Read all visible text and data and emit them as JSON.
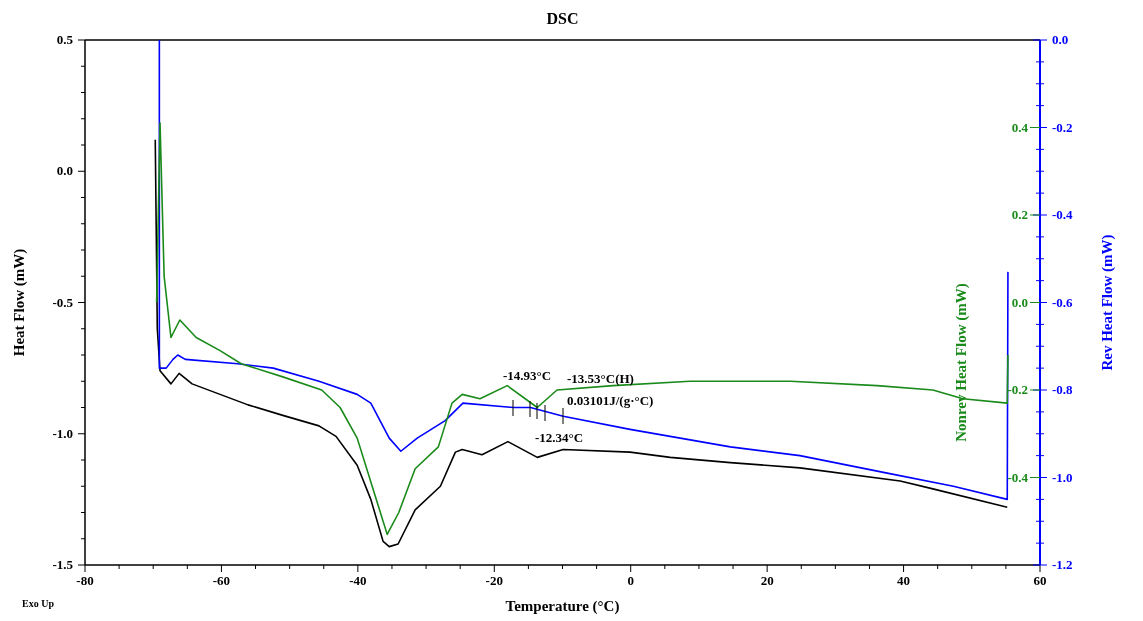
{
  "chart_data": {
    "type": "line",
    "title": "DSC",
    "xlabel": "Temperature (°C)",
    "ylabel": "Heat Flow (mW)",
    "y2label": "Nonrev Heat Flow (mW)",
    "y3label": "Rev Heat Flow (mW)",
    "xlim": [
      -80,
      60
    ],
    "xticks": [
      -80,
      {
        "value": -75,
        "label": null
      },
      {
        "value": -70,
        "label": null
      },
      {
        "value": -65,
        "label": null
      },
      -60,
      {
        "value": -55,
        "label": null
      },
      {
        "value": -50,
        "label": null
      },
      {
        "value": -45,
        "label": null
      },
      -40,
      {
        "value": -35,
        "label": null
      },
      {
        "value": -30,
        "label": null
      },
      {
        "value": -25,
        "label": null
      },
      -20,
      {
        "value": -15,
        "label": null
      },
      {
        "value": -10,
        "label": null
      },
      {
        "value": -5,
        "label": null
      },
      0,
      {
        "value": 5,
        "label": null
      },
      {
        "value": 10,
        "label": null
      },
      {
        "value": 15,
        "label": null
      },
      20,
      {
        "value": 25,
        "label": null
      },
      {
        "value": 30,
        "label": null
      },
      {
        "value": 35,
        "label": null
      },
      40,
      {
        "value": 45,
        "label": null
      },
      {
        "value": 50,
        "label": null
      },
      {
        "value": 55,
        "label": null
      },
      60
    ],
    "ylim": [
      -1.5,
      0.5
    ],
    "yticks": [
      -1.5,
      {
        "value": -1.4,
        "label": null
      },
      {
        "value": -1.3,
        "label": null
      },
      {
        "value": -1.2,
        "label": null
      },
      {
        "value": -1.1,
        "label": null
      },
      {
        "value": -1,
        "label": "-1.0"
      },
      {
        "value": -0.9,
        "label": null
      },
      {
        "value": -0.8,
        "label": null
      },
      {
        "value": -0.7,
        "label": null
      },
      {
        "value": -0.6,
        "label": null
      },
      -0.5,
      {
        "value": -0.4,
        "label": null
      },
      {
        "value": -0.3,
        "label": null
      },
      {
        "value": -0.2,
        "label": null
      },
      {
        "value": -0.1,
        "label": null
      },
      {
        "value": 0,
        "label": "0.0"
      },
      {
        "value": 0.1,
        "label": null
      },
      {
        "value": 0.2,
        "label": null
      },
      {
        "value": 0.3,
        "label": null
      },
      {
        "value": 0.4,
        "label": null
      },
      0.5
    ],
    "y2lim": [
      -0.6,
      0.6
    ],
    "y2ticks": [
      -0.4,
      -0.2,
      {
        "value": 0,
        "label": "0.0"
      },
      0.2,
      0.4
    ],
    "y3lim": [
      -1.2,
      0
    ],
    "y3ticks": [
      {
        "value": -1.2,
        "label": "-1.2"
      },
      {
        "value": -1.15,
        "label": null
      },
      {
        "value": -1.1,
        "label": null
      },
      {
        "value": -1.05,
        "label": null
      },
      {
        "value": -1,
        "label": "-1.0"
      },
      {
        "value": -0.95,
        "label": null
      },
      {
        "value": -0.9,
        "label": null
      },
      {
        "value": -0.85,
        "label": null
      },
      -0.8,
      {
        "value": -0.75,
        "label": null
      },
      {
        "value": -0.7,
        "label": null
      },
      {
        "value": -0.65,
        "label": null
      },
      -0.6,
      {
        "value": -0.55,
        "label": null
      },
      {
        "value": -0.5,
        "label": null
      },
      {
        "value": -0.45,
        "label": null
      },
      -0.4,
      {
        "value": -0.35,
        "label": null
      },
      {
        "value": -0.3,
        "label": null
      },
      {
        "value": -0.25,
        "label": null
      },
      -0.2,
      {
        "value": -0.15,
        "label": null
      },
      {
        "value": -0.1,
        "label": null
      },
      {
        "value": -0.05,
        "label": null
      },
      {
        "value": 0,
        "label": "0.0"
      }
    ],
    "grid": false,
    "marker": "none",
    "line_style": "solid",
    "series": [
      {
        "color": "#000000",
        "x": [
          -69.7,
          -69.4,
          -69.0,
          -67.4,
          -66.2,
          -64.3,
          -60.2,
          -56.1,
          -51.0,
          -45.7,
          -43.2,
          -40.1,
          -38.1,
          -36.3,
          -35.4,
          -34.1,
          -31.6,
          -27.9,
          -25.7,
          -24.7,
          -21.8,
          -18.0,
          -13.7,
          -9.9,
          -0.1,
          5.8,
          14.6,
          24.8,
          39.5,
          44.3,
          55.2
        ],
        "values": [
          0.12,
          -0.6,
          -0.76,
          -0.81,
          -0.77,
          -0.81,
          -0.85,
          -0.89,
          -0.93,
          -0.97,
          -1.01,
          -1.12,
          -1.25,
          -1.41,
          -1.43,
          -1.42,
          -1.29,
          -1.2,
          -1.07,
          -1.06,
          -1.08,
          -1.03,
          -1.09,
          -1.06,
          -1.07,
          -1.09,
          -1.11,
          -1.13,
          -1.18,
          -1.21,
          -1.28
        ]
      },
      {
        "color": "#1a8a1a",
        "axis": "y2",
        "x": [
          -69.5,
          -69.0,
          -68.4,
          -67.4,
          -66.1,
          -63.7,
          -60.2,
          -57.1,
          -51.0,
          -45.3,
          -42.6,
          -40.1,
          -37.5,
          -35.7,
          -34.0,
          -31.6,
          -28.2,
          -26.2,
          -24.7,
          -22.1,
          -18.1,
          -13.7,
          -10.8,
          -2.6,
          8.7,
          23.4,
          36.1,
          44.3,
          48.7,
          55.2,
          55.3
        ],
        "values": [
          0.0,
          0.41,
          0.06,
          -0.08,
          -0.04,
          -0.08,
          -0.11,
          -0.14,
          -0.17,
          -0.2,
          -0.24,
          -0.31,
          -0.44,
          -0.53,
          -0.48,
          -0.38,
          -0.33,
          -0.23,
          -0.21,
          -0.22,
          -0.19,
          -0.24,
          -0.2,
          -0.19,
          -0.18,
          -0.18,
          -0.19,
          -0.2,
          -0.22,
          -0.23,
          -0.12
        ]
      },
      {
        "color": "#0000ff",
        "axis": "y3",
        "x": [
          -69.1,
          -69.1,
          -68.1,
          -67.1,
          -66.4,
          -65.3,
          -57.6,
          -52.4,
          -45.7,
          -40.1,
          -38.1,
          -35.4,
          -33.7,
          -31.3,
          -27.2,
          -24.6,
          -17.2,
          -14.7,
          -9.9,
          -0.1,
          14.6,
          24.8,
          37.6,
          47.3,
          55.2,
          55.3
        ],
        "values": [
          0.0,
          -0.75,
          -0.75,
          -0.73,
          -0.72,
          -0.73,
          -0.74,
          -0.75,
          -0.78,
          -0.81,
          -0.83,
          -0.91,
          -0.94,
          -0.91,
          -0.87,
          -0.83,
          -0.84,
          -0.84,
          -0.86,
          -0.89,
          -0.93,
          -0.95,
          -0.99,
          -1.02,
          -1.05,
          -0.53
        ]
      }
    ],
    "annotations": [
      "-14.93°C",
      "-13.53°C(H)",
      "0.03101J/(g·°C)",
      "-12.34°C",
      "Exo Up"
    ]
  }
}
